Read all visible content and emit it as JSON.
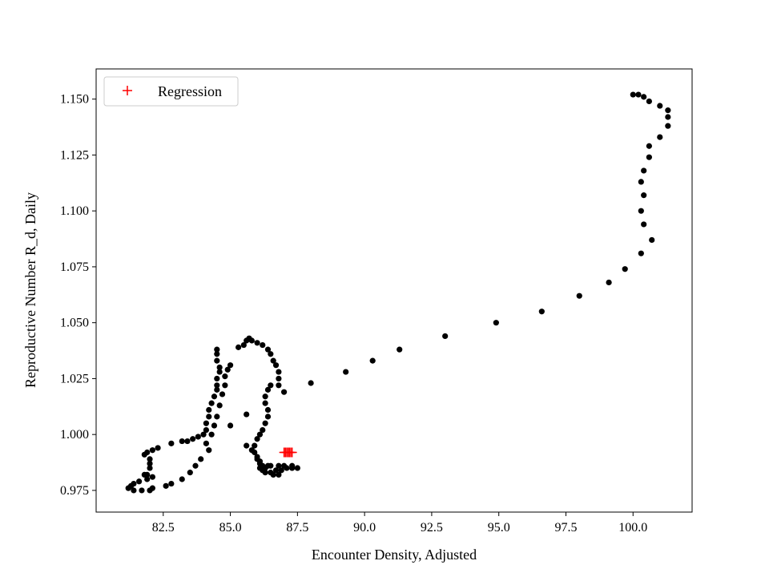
{
  "chart_data": {
    "type": "scatter",
    "xlabel": "Encounter Density, Adjusted",
    "ylabel": "Reproductive Number R_d, Daily",
    "xlim": [
      80.0,
      102.2
    ],
    "ylim": [
      0.9653,
      1.1635
    ],
    "xticks": [
      82.5,
      85.0,
      87.5,
      90.0,
      92.5,
      95.0,
      97.5,
      100.0
    ],
    "xtick_labels": [
      "82.5",
      "85.0",
      "87.5",
      "90.0",
      "92.5",
      "95.0",
      "97.5",
      "100.0"
    ],
    "yticks": [
      0.975,
      1.0,
      1.025,
      1.05,
      1.075,
      1.1,
      1.125,
      1.15
    ],
    "ytick_labels": [
      "0.975",
      "1.000",
      "1.025",
      "1.050",
      "1.075",
      "1.100",
      "1.125",
      "1.150"
    ],
    "grid": false,
    "legend": {
      "position": "top-left",
      "entries": [
        "Regression"
      ]
    },
    "series": [
      {
        "marker": "circle",
        "color": "#000000",
        "points": [
          [
            100.0,
            1.152
          ],
          [
            100.2,
            1.152
          ],
          [
            100.4,
            1.151
          ],
          [
            100.6,
            1.149
          ],
          [
            101.0,
            1.147
          ],
          [
            101.3,
            1.145
          ],
          [
            101.3,
            1.142
          ],
          [
            101.3,
            1.138
          ],
          [
            101.0,
            1.133
          ],
          [
            100.6,
            1.129
          ],
          [
            100.6,
            1.124
          ],
          [
            100.4,
            1.118
          ],
          [
            100.3,
            1.113
          ],
          [
            100.4,
            1.107
          ],
          [
            100.3,
            1.1
          ],
          [
            100.4,
            1.094
          ],
          [
            100.7,
            1.087
          ],
          [
            100.3,
            1.081
          ],
          [
            99.7,
            1.074
          ],
          [
            99.1,
            1.068
          ],
          [
            98.0,
            1.062
          ],
          [
            96.6,
            1.055
          ],
          [
            94.9,
            1.05
          ],
          [
            93.0,
            1.044
          ],
          [
            91.3,
            1.038
          ],
          [
            90.3,
            1.033
          ],
          [
            89.3,
            1.028
          ],
          [
            88.0,
            1.023
          ],
          [
            87.0,
            1.019
          ],
          [
            86.8,
            1.022
          ],
          [
            86.8,
            1.025
          ],
          [
            86.8,
            1.028
          ],
          [
            86.7,
            1.031
          ],
          [
            86.6,
            1.033
          ],
          [
            86.5,
            1.036
          ],
          [
            86.4,
            1.038
          ],
          [
            86.2,
            1.04
          ],
          [
            86.0,
            1.041
          ],
          [
            85.8,
            1.042
          ],
          [
            85.7,
            1.043
          ],
          [
            85.6,
            1.042
          ],
          [
            85.5,
            1.04
          ],
          [
            85.3,
            1.039
          ],
          [
            84.5,
            1.038
          ],
          [
            84.5,
            1.036
          ],
          [
            84.5,
            1.033
          ],
          [
            84.6,
            1.03
          ],
          [
            84.6,
            1.028
          ],
          [
            84.5,
            1.025
          ],
          [
            84.5,
            1.022
          ],
          [
            84.5,
            1.02
          ],
          [
            84.4,
            1.017
          ],
          [
            84.3,
            1.014
          ],
          [
            84.2,
            1.011
          ],
          [
            84.2,
            1.008
          ],
          [
            84.1,
            1.005
          ],
          [
            84.1,
            1.002
          ],
          [
            84.0,
            1.0
          ],
          [
            83.8,
            0.999
          ],
          [
            83.6,
            0.998
          ],
          [
            83.4,
            0.997
          ],
          [
            83.2,
            0.997
          ],
          [
            82.8,
            0.996
          ],
          [
            82.3,
            0.994
          ],
          [
            82.1,
            0.993
          ],
          [
            81.9,
            0.992
          ],
          [
            81.8,
            0.991
          ],
          [
            82.0,
            0.989
          ],
          [
            82.0,
            0.987
          ],
          [
            82.0,
            0.985
          ],
          [
            81.9,
            0.982
          ],
          [
            81.9,
            0.98
          ],
          [
            81.6,
            0.979
          ],
          [
            81.4,
            0.978
          ],
          [
            81.3,
            0.977
          ],
          [
            81.2,
            0.976
          ],
          [
            81.4,
            0.975
          ],
          [
            81.7,
            0.975
          ],
          [
            82.0,
            0.975
          ],
          [
            82.1,
            0.976
          ],
          [
            82.6,
            0.977
          ],
          [
            82.8,
            0.978
          ],
          [
            83.2,
            0.98
          ],
          [
            82.1,
            0.981
          ],
          [
            81.8,
            0.982
          ],
          [
            83.5,
            0.983
          ],
          [
            83.7,
            0.986
          ],
          [
            83.9,
            0.989
          ],
          [
            84.2,
            0.993
          ],
          [
            84.1,
            0.996
          ],
          [
            84.3,
            1.0
          ],
          [
            84.4,
            1.004
          ],
          [
            84.5,
            1.008
          ],
          [
            84.6,
            1.013
          ],
          [
            84.7,
            1.018
          ],
          [
            84.8,
            1.022
          ],
          [
            84.8,
            1.026
          ],
          [
            84.9,
            1.029
          ],
          [
            85.0,
            1.031
          ],
          [
            85.0,
            1.004
          ],
          [
            85.6,
            1.009
          ],
          [
            85.6,
            0.995
          ],
          [
            85.8,
            0.993
          ],
          [
            86.0,
            0.99
          ],
          [
            86.1,
            0.988
          ],
          [
            86.2,
            0.986
          ],
          [
            86.2,
            0.984
          ],
          [
            86.3,
            0.983
          ],
          [
            86.5,
            0.983
          ],
          [
            86.6,
            0.982
          ],
          [
            86.8,
            0.982
          ],
          [
            86.7,
            0.984
          ],
          [
            86.9,
            0.984
          ],
          [
            87.1,
            0.985
          ],
          [
            87.3,
            0.985
          ],
          [
            87.5,
            0.985
          ],
          [
            87.3,
            0.986
          ],
          [
            87.0,
            0.986
          ],
          [
            86.8,
            0.986
          ],
          [
            86.5,
            0.986
          ],
          [
            86.4,
            0.986
          ],
          [
            86.3,
            0.985
          ],
          [
            86.1,
            0.985
          ],
          [
            86.1,
            0.987
          ],
          [
            86.0,
            0.989
          ],
          [
            85.9,
            0.992
          ],
          [
            85.9,
            0.995
          ],
          [
            86.0,
            0.998
          ],
          [
            86.1,
            1.0
          ],
          [
            86.2,
            1.002
          ],
          [
            86.3,
            1.005
          ],
          [
            86.4,
            1.008
          ],
          [
            86.4,
            1.011
          ],
          [
            86.3,
            1.014
          ],
          [
            86.3,
            1.017
          ],
          [
            86.4,
            1.02
          ],
          [
            86.5,
            1.022
          ]
        ]
      },
      {
        "name": "Regression",
        "marker": "plus",
        "color": "#ff0000",
        "points": [
          [
            87.0,
            0.992
          ],
          [
            87.05,
            0.992
          ],
          [
            87.1,
            0.992
          ],
          [
            87.15,
            0.992
          ],
          [
            87.2,
            0.992
          ],
          [
            87.25,
            0.992
          ],
          [
            87.3,
            0.992
          ]
        ]
      }
    ]
  }
}
